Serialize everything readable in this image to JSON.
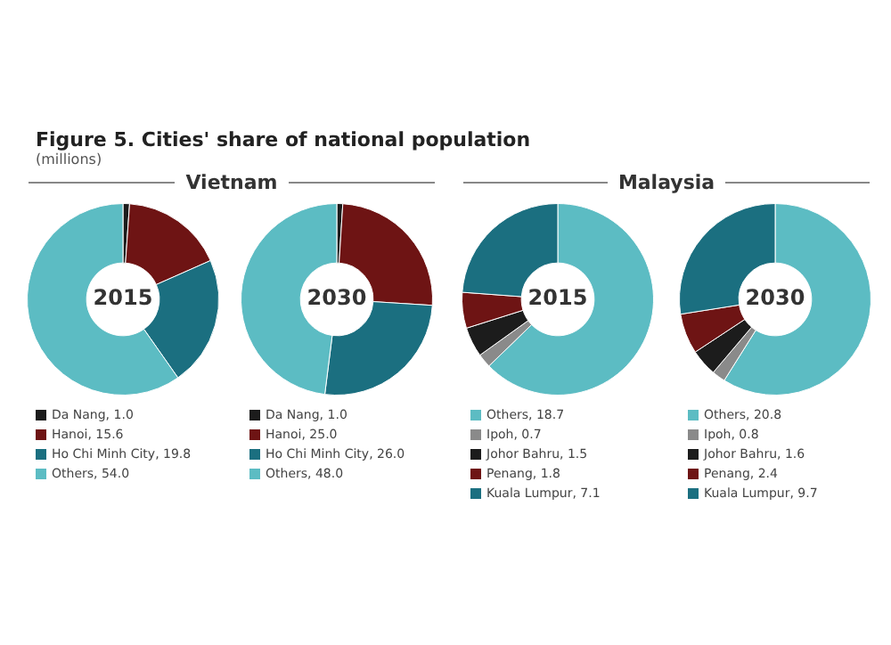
{
  "chart_data": [
    {
      "type": "donut",
      "legend": "bottom",
      "title": "2015",
      "subtitle": "Vietnam",
      "annotations": [
        "Figure 5. Cities' share of national population",
        "(millions)"
      ],
      "categories": [
        "Da Nang",
        "Hanoi",
        "Ho Chi Minh City",
        "Others"
      ],
      "values": [
        1.0,
        15.6,
        19.8,
        54.0
      ],
      "value_labels": [
        "1.0",
        "15.6",
        "19.8",
        "54.0"
      ],
      "colors": [
        "#1c1c1c",
        "#6e1414",
        "#1b6f80",
        "#5cbcc3"
      ]
    },
    {
      "type": "donut",
      "legend": "bottom",
      "title": "2030",
      "categories": [
        "Da Nang",
        "Hanoi",
        "Ho Chi Minh City",
        "Others"
      ],
      "values": [
        1.0,
        25.0,
        26.0,
        48.0
      ],
      "value_labels": [
        "1.0",
        "25.0",
        "26.0",
        "48.0"
      ],
      "colors": [
        "#1c1c1c",
        "#6e1414",
        "#1b6f80",
        "#5cbcc3"
      ]
    },
    {
      "type": "donut",
      "legend": "bottom",
      "title": "2015",
      "subtitle": "Malaysia",
      "categories": [
        "Others",
        "Ipoh",
        "Johor Bahru",
        "Penang",
        "Kuala Lumpur"
      ],
      "values": [
        18.7,
        0.7,
        1.5,
        1.8,
        7.1
      ],
      "value_labels": [
        "18.7",
        "0.7",
        "1.5",
        "1.8",
        "7.1"
      ],
      "colors": [
        "#5cbcc3",
        "#8a8a8a",
        "#1c1c1c",
        "#6e1414",
        "#1b6f80"
      ]
    },
    {
      "type": "donut",
      "legend": "bottom",
      "title": "2030",
      "categories": [
        "Others",
        "Ipoh",
        "Johor Bahru",
        "Penang",
        "Kuala Lumpur"
      ],
      "values": [
        20.8,
        0.8,
        1.6,
        2.4,
        9.7
      ],
      "value_labels": [
        "20.8",
        "0.8",
        "1.6",
        "2.4",
        "9.7"
      ],
      "colors": [
        "#5cbcc3",
        "#8a8a8a",
        "#1c1c1c",
        "#6e1414",
        "#1b6f80"
      ]
    }
  ]
}
